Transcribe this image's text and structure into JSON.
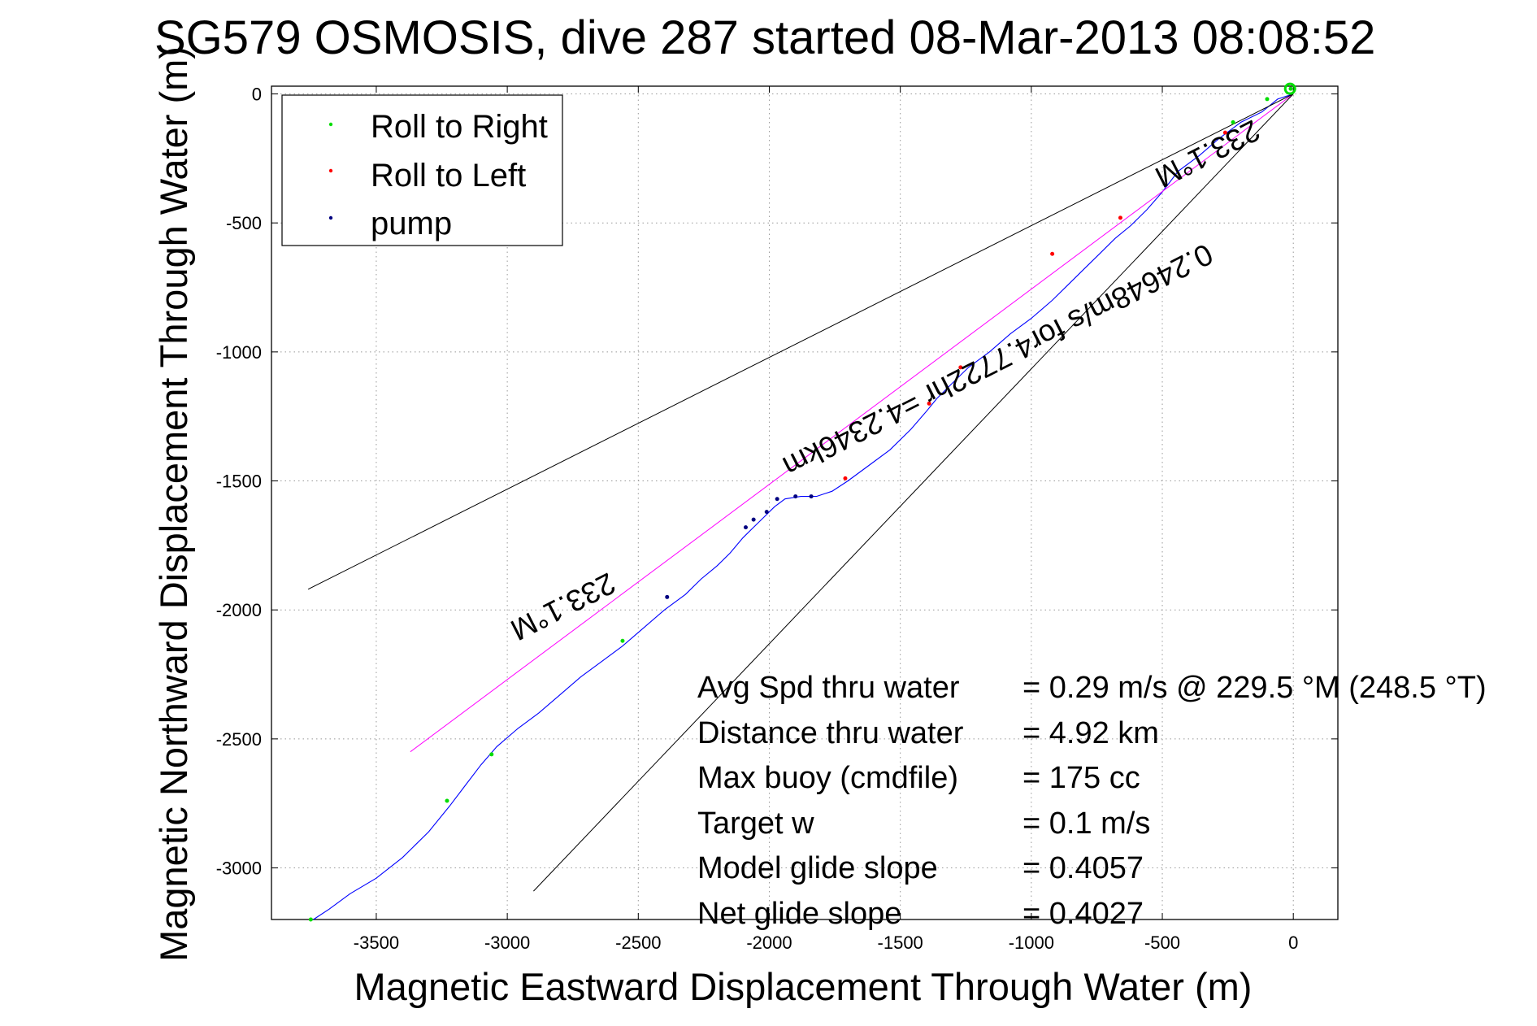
{
  "chart_data": {
    "type": "scatter",
    "title": "SG579 OSMOSIS, dive 287 started 08-Mar-2013 08:08:52",
    "xlabel": "Magnetic Eastward Displacement Through Water (m)",
    "ylabel": "Magnetic Northward Displacement Through Water (m)",
    "xlim": [
      -3900,
      170
    ],
    "ylim": [
      -3200,
      30
    ],
    "xticks": [
      -3500,
      -3000,
      -2500,
      -2000,
      -1500,
      -1000,
      -500,
      0
    ],
    "yticks": [
      0,
      -500,
      -1000,
      -1500,
      -2000,
      -2500,
      -3000
    ],
    "grid": true,
    "legend_position": "top-left",
    "legend": [
      {
        "label": "Roll to Right",
        "color": "#00dd00"
      },
      {
        "label": "Roll to Left",
        "color": "#ff0000"
      },
      {
        "label": "pump",
        "color": "#000080"
      }
    ],
    "series": [
      {
        "role": "track",
        "color": "#0000ff",
        "x": [
          0,
          -60,
          -120,
          -200,
          -280,
          -360,
          -440,
          -500,
          -560,
          -620,
          -680,
          -740,
          -800,
          -860,
          -920,
          -1000,
          -1080,
          -1160,
          -1240,
          -1300,
          -1360,
          -1400,
          -1460,
          -1540,
          -1620,
          -1700,
          -1760,
          -1820,
          -1880,
          -1940,
          -1980,
          -2020,
          -2060,
          -2100,
          -2150,
          -2200,
          -2260,
          -2320,
          -2400,
          -2480,
          -2560,
          -2640,
          -2720,
          -2800,
          -2880,
          -2960,
          -3040,
          -3100,
          -3160,
          -3220,
          -3300,
          -3400,
          -3500,
          -3600,
          -3680,
          -3740
        ],
        "y": [
          0,
          -20,
          -70,
          -110,
          -170,
          -240,
          -300,
          -380,
          -450,
          -510,
          -560,
          -620,
          -680,
          -740,
          -800,
          -870,
          -930,
          -1000,
          -1060,
          -1120,
          -1180,
          -1230,
          -1300,
          -1380,
          -1440,
          -1500,
          -1540,
          -1560,
          -1560,
          -1570,
          -1600,
          -1640,
          -1680,
          -1720,
          -1780,
          -1830,
          -1880,
          -1940,
          -2000,
          -2070,
          -2140,
          -2200,
          -2260,
          -2330,
          -2400,
          -2460,
          -2530,
          -2600,
          -2680,
          -2760,
          -2860,
          -2960,
          -3040,
          -3100,
          -3160,
          -3200
        ]
      },
      {
        "role": "heading line",
        "color": "#ff00ff",
        "x": [
          0,
          -3370
        ],
        "y": [
          0,
          -2550
        ]
      },
      {
        "role": "envelope",
        "color": "#000000",
        "x": [
          0,
          -3760
        ],
        "y": [
          0,
          -1920
        ]
      },
      {
        "role": "envelope",
        "color": "#000000",
        "x": [
          0,
          -2900
        ],
        "y": [
          0,
          -3090
        ]
      }
    ],
    "markers": {
      "roll_right": {
        "x": [
          -10,
          -100,
          -230,
          -2560,
          -3060,
          -3230,
          -3750
        ],
        "y": [
          20,
          -20,
          -110,
          -2120,
          -2560,
          -2740,
          -3200
        ]
      },
      "roll_left": {
        "x": [
          -260,
          -660,
          -920,
          -1270,
          -1390,
          -1710
        ],
        "y": [
          -150,
          -480,
          -620,
          -1060,
          -1200,
          -1490
        ]
      },
      "pump": {
        "x": [
          -1840,
          -1900,
          -1970,
          -2010,
          -2060,
          -2090,
          -2390
        ],
        "y": [
          -1560,
          -1560,
          -1570,
          -1620,
          -1650,
          -1680,
          -1950
        ]
      }
    },
    "annotations": {
      "heading_top": "233.1°M",
      "heading_left": "233.1°M",
      "speed_line": "0.24648m/s for4.7722hr =4.2346km",
      "stats": [
        {
          "label": "Avg Spd thru water",
          "value": "=  0.29 m/s @ 229.5 °M (248.5 °T)"
        },
        {
          "label": "Distance thru water",
          "value": "=  4.92 km"
        },
        {
          "label": "Max buoy (cmdfile)",
          "value": "= 175 cc"
        },
        {
          "label": "Target w",
          "value": "= 0.1 m/s"
        },
        {
          "label": "Model glide slope",
          "value": "= 0.4057"
        },
        {
          "label": "Net glide slope",
          "value": "= 0.4027"
        }
      ]
    }
  }
}
